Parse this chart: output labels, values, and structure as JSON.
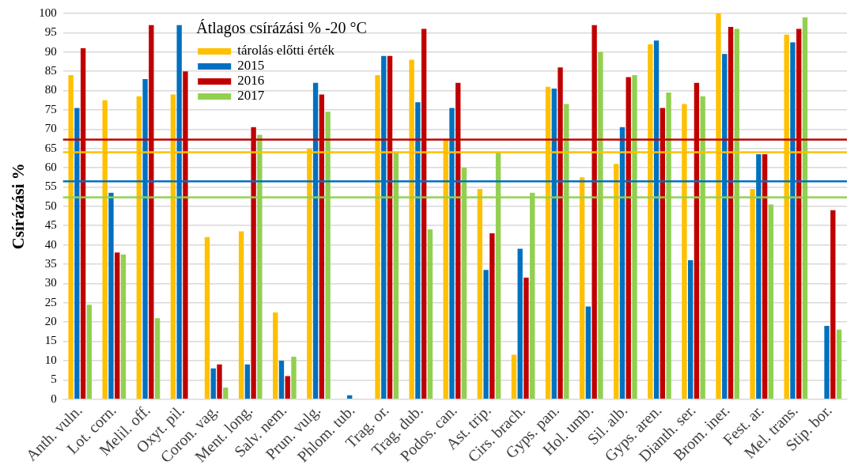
{
  "chart_data": {
    "type": "bar",
    "ylabel": "Csírázási %",
    "legend_title": "Átlagos csírázási % -20 °C",
    "categories": [
      "Anth. vuln.",
      "Lot. corn.",
      "Melil. off.",
      "Oxyt. pil.",
      "Coron. vag.",
      "Ment. long.",
      "Salv. nem.",
      "Prun. vulg.",
      "Phlom. tub.",
      "Trag. or.",
      "Trag. dub.",
      "Podos. can.",
      "Ast. trip.",
      "Cirs. brach.",
      "Gyps. pan.",
      "Hol. umb.",
      "Sil. alb.",
      "Gyps. aren.",
      "Dianth. ser.",
      "Brom. iner.",
      "Fest. ar.",
      "Mel. trans.",
      "Stip. bor."
    ],
    "series": [
      {
        "name": "tárolás előtti érték",
        "color": "#ffc000",
        "values": [
          84,
          77.5,
          78.5,
          79,
          42,
          43.5,
          22.5,
          65,
          null,
          84,
          88,
          67.5,
          54.5,
          11.5,
          81,
          57.5,
          61,
          92,
          76.5,
          100,
          54.5,
          94.5,
          null
        ]
      },
      {
        "name": "2015",
        "color": "#0070c0",
        "values": [
          75.5,
          53.5,
          83,
          97,
          8,
          9,
          10,
          82,
          1,
          89,
          77,
          75.5,
          33.5,
          39,
          80.5,
          24,
          70.5,
          93,
          36,
          89.5,
          63.5,
          92.5,
          19
        ]
      },
      {
        "name": "2016",
        "color": "#c00000",
        "values": [
          91,
          38,
          97,
          85,
          9,
          70.5,
          6,
          79,
          null,
          89,
          96,
          82,
          43,
          31.5,
          86,
          97,
          83.5,
          75.5,
          82,
          96.5,
          63.5,
          96,
          49
        ]
      },
      {
        "name": "2017",
        "color": "#92d050",
        "values": [
          24.5,
          37.5,
          21,
          null,
          3,
          68.5,
          11,
          74.5,
          null,
          64,
          44,
          60,
          64,
          53.5,
          76.5,
          90,
          84,
          79.5,
          78.5,
          96,
          50.5,
          99,
          18
        ]
      }
    ],
    "ref_lines": [
      {
        "axis": "y",
        "value": 67.3,
        "color": "#c00000"
      },
      {
        "axis": "y",
        "value": 64,
        "color": "#ffc000"
      },
      {
        "axis": "y",
        "value": 56.5,
        "color": "#0070c0"
      },
      {
        "axis": "y",
        "value": 52.3,
        "color": "#92d050"
      }
    ],
    "ylim": [
      0,
      100
    ],
    "yticks": [
      0,
      5,
      10,
      15,
      20,
      25,
      30,
      35,
      40,
      45,
      50,
      55,
      60,
      65,
      70,
      75,
      80,
      85,
      90,
      95,
      100
    ],
    "grid": "y",
    "legend": "top left"
  }
}
